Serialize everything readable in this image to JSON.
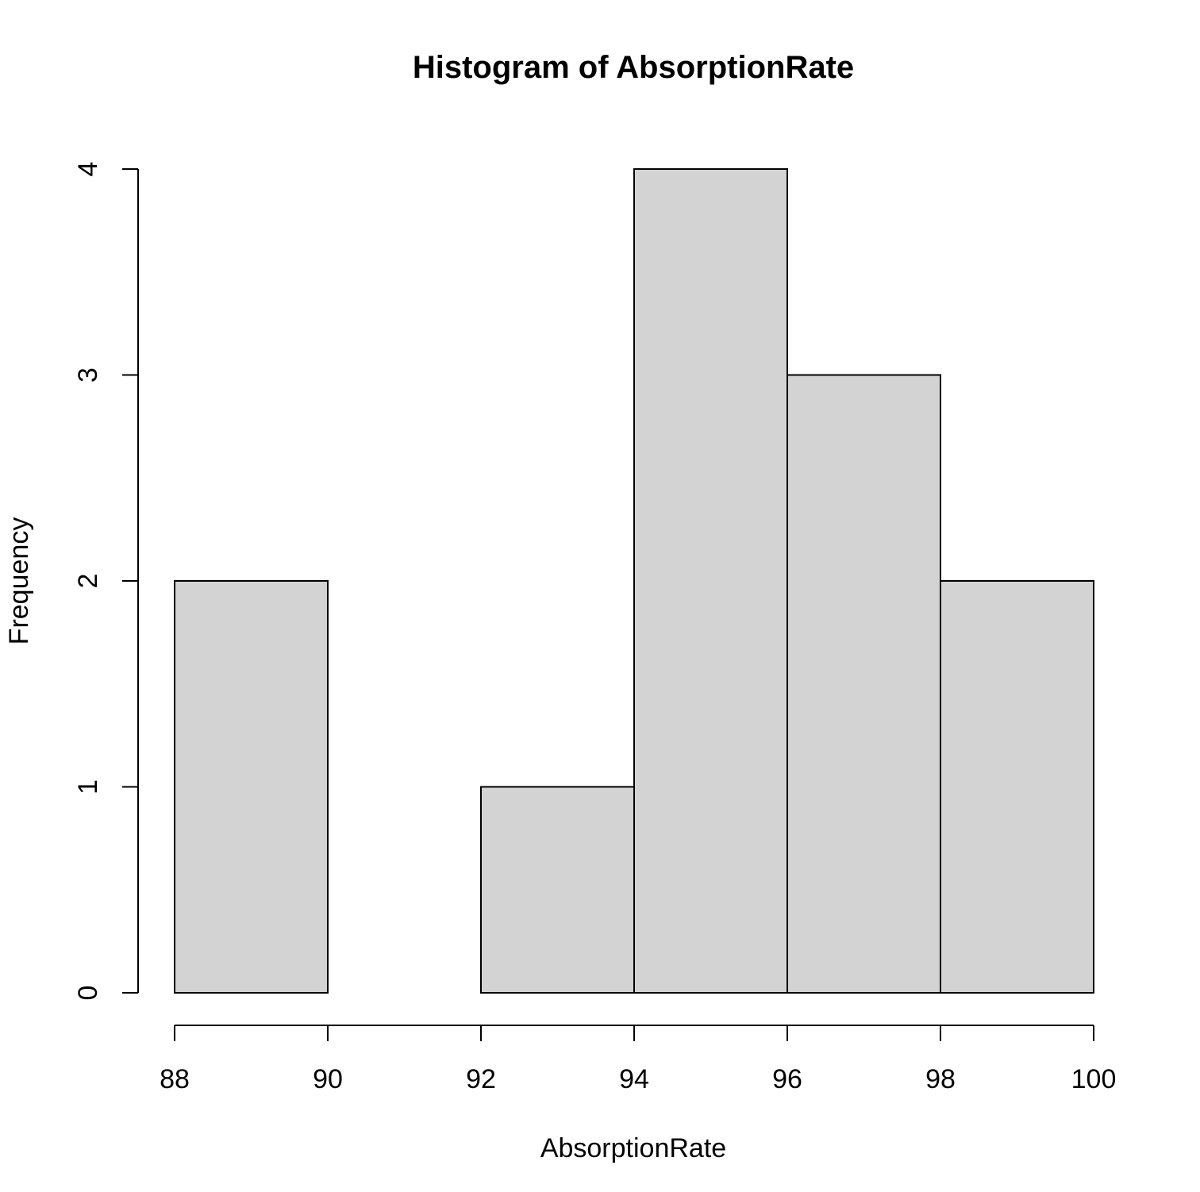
{
  "chart_data": {
    "type": "bar",
    "subtype": "histogram",
    "title": "Histogram of AbsorptionRate",
    "xlabel": "AbsorptionRate",
    "ylabel": "Frequency",
    "bins": [
      {
        "start": 88,
        "end": 90,
        "count": 2
      },
      {
        "start": 90,
        "end": 92,
        "count": 0
      },
      {
        "start": 92,
        "end": 94,
        "count": 1
      },
      {
        "start": 94,
        "end": 96,
        "count": 4
      },
      {
        "start": 96,
        "end": 98,
        "count": 3
      },
      {
        "start": 98,
        "end": 100,
        "count": 2
      }
    ],
    "xlim": [
      88,
      100
    ],
    "ylim": [
      0,
      4
    ],
    "x_ticks": [
      88,
      90,
      92,
      94,
      96,
      98,
      100
    ],
    "x_tick_labels": [
      "88",
      "90",
      "92",
      "94",
      "96",
      "98",
      "100"
    ],
    "y_ticks": [
      0,
      1,
      2,
      3,
      4
    ],
    "y_tick_labels": [
      "0",
      "1",
      "2",
      "3",
      "4"
    ],
    "bar_fill": "#d3d3d3",
    "bar_stroke": "#000000",
    "grid": false,
    "legend": "none"
  }
}
